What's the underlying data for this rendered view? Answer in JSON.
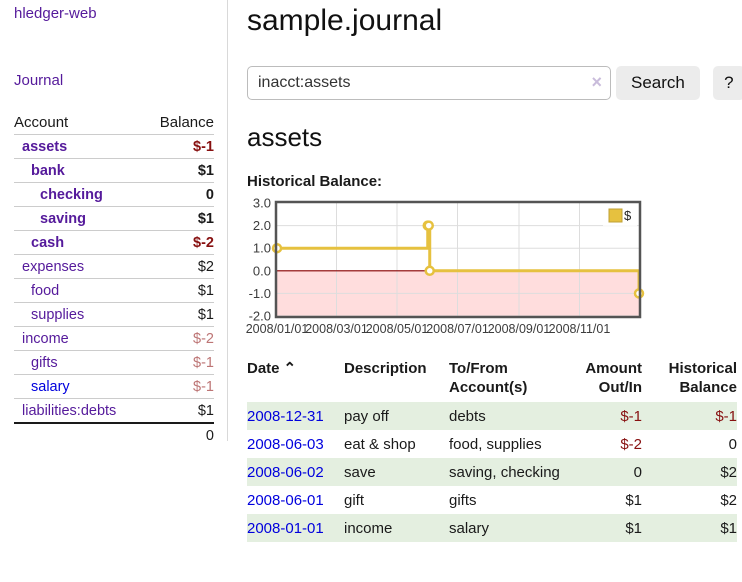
{
  "sidebar": {
    "app_title": "hledger-web",
    "journal_label": "Journal",
    "accounts_table": {
      "headers": [
        "Account",
        "Balance"
      ],
      "rows": [
        {
          "account": "assets",
          "balance": "$-1",
          "depth": 1,
          "bold": true,
          "neg": "strong"
        },
        {
          "account": "bank",
          "balance": "$1",
          "depth": 2,
          "bold": true,
          "neg": ""
        },
        {
          "account": "checking",
          "balance": "0",
          "depth": 3,
          "bold": true,
          "neg": ""
        },
        {
          "account": "saving",
          "balance": "$1",
          "depth": 3,
          "bold": true,
          "neg": ""
        },
        {
          "account": "cash",
          "balance": "$-2",
          "depth": 2,
          "bold": true,
          "neg": "strong"
        },
        {
          "account": "expenses",
          "balance": "$2",
          "depth": 1,
          "bold": false,
          "neg": ""
        },
        {
          "account": "food",
          "balance": "$1",
          "depth": 2,
          "bold": false,
          "neg": ""
        },
        {
          "account": "supplies",
          "balance": "$1",
          "depth": 2,
          "bold": false,
          "neg": ""
        },
        {
          "account": "income",
          "balance": "$-2",
          "depth": 1,
          "bold": false,
          "neg": "muted"
        },
        {
          "account": "gifts",
          "balance": "$-1",
          "depth": 2,
          "bold": false,
          "neg": "muted"
        },
        {
          "account": "salary",
          "balance": "$-1",
          "depth": 2,
          "bold": false,
          "neg": "muted",
          "blue": true
        },
        {
          "account": "liabilities:debts",
          "balance": "$1",
          "depth": 1,
          "bold": false,
          "neg": ""
        }
      ],
      "total": "0"
    }
  },
  "header": {
    "title": "sample.journal"
  },
  "search": {
    "query": "inacct:assets",
    "clear_icon": "×",
    "button_label": "Search",
    "help_label": "?"
  },
  "account_page": {
    "heading": "assets"
  },
  "chart_data": {
    "type": "line",
    "title": "Historical Balance:",
    "series": [
      {
        "name": "$",
        "color": "#e6c13f",
        "step": true,
        "points": [
          {
            "date": "2008-01-01",
            "value": 1
          },
          {
            "date": "2008-06-01",
            "value": 2
          },
          {
            "date": "2008-06-02",
            "value": 2
          },
          {
            "date": "2008-06-03",
            "value": 0
          },
          {
            "date": "2008-12-31",
            "value": -1
          }
        ]
      }
    ],
    "x_ticks": [
      "2008/01/01",
      "2008/03/01",
      "2008/05/01",
      "2008/07/01",
      "2008/09/01",
      "2008/11/01"
    ],
    "y_ticks": [
      3,
      2,
      1,
      0,
      -1,
      -2
    ],
    "ylim": [
      -2,
      3
    ],
    "xlim": [
      "2008-01-01",
      "2008-12-31"
    ],
    "grid": true,
    "legend_position": "top-right",
    "negative_region_color": "#ffdddd",
    "zero_line_color": "#8b0000",
    "grid_color": "#dddddd",
    "border_color": "#545454"
  },
  "register_table": {
    "headers": {
      "date": "Date",
      "description": "Description",
      "accounts": "To/From Account(s)",
      "amount": "Amount Out/In",
      "balance": "Historical Balance"
    },
    "sort_icon": "⌃",
    "rows": [
      {
        "date": "2008-12-31",
        "description": "pay off",
        "accounts": "debts",
        "amount": "$-1",
        "balance": "$-1",
        "amount_negative": true,
        "balance_negative": true
      },
      {
        "date": "2008-06-03",
        "description": "eat & shop",
        "accounts": "food, supplies",
        "amount": "$-2",
        "balance": "0",
        "amount_negative": true,
        "balance_negative": false
      },
      {
        "date": "2008-06-02",
        "description": "save",
        "accounts": "saving, checking",
        "amount": "0",
        "balance": "$2",
        "amount_negative": false,
        "balance_negative": false
      },
      {
        "date": "2008-06-01",
        "description": "gift",
        "accounts": "gifts",
        "amount": "$1",
        "balance": "$2",
        "amount_negative": false,
        "balance_negative": false
      },
      {
        "date": "2008-01-01",
        "description": "income",
        "accounts": "salary",
        "amount": "$1",
        "balance": "$1",
        "amount_negative": false,
        "balance_negative": false
      }
    ]
  },
  "colors": {
    "accent_purple": "#551a9b",
    "link_blue": "#0000dd",
    "negative_strong": "#871010",
    "negative_muted": "#bd7575",
    "row_stripe_green": "#e4efe0",
    "chart_line_gold": "#e6c13f",
    "chart_negative_bg": "#ffdddd",
    "chart_zero_line": "#8b0000",
    "button_gray": "#ececec"
  }
}
